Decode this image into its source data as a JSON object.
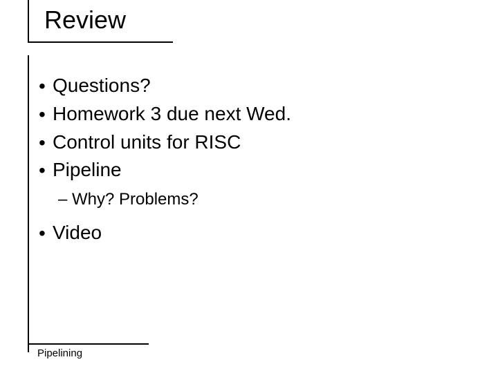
{
  "slide": {
    "title": "Review",
    "bullets": [
      {
        "level": 1,
        "text": "Questions?"
      },
      {
        "level": 1,
        "text": "Homework 3 due next Wed."
      },
      {
        "level": 1,
        "text": "Control units for RISC"
      },
      {
        "level": 1,
        "text": "Pipeline"
      },
      {
        "level": 2,
        "text": "Why?  Problems?"
      },
      {
        "level": 1,
        "text": "Video"
      }
    ],
    "footer": "Pipelining"
  },
  "style": {
    "background_color": "#ffffff",
    "text_color": "#000000",
    "title_fontsize": 36,
    "body_fontsize_l1": 28,
    "body_fontsize_l2": 24,
    "footer_fontsize": 15,
    "rule_color": "#000000",
    "font_family": "Arial"
  }
}
